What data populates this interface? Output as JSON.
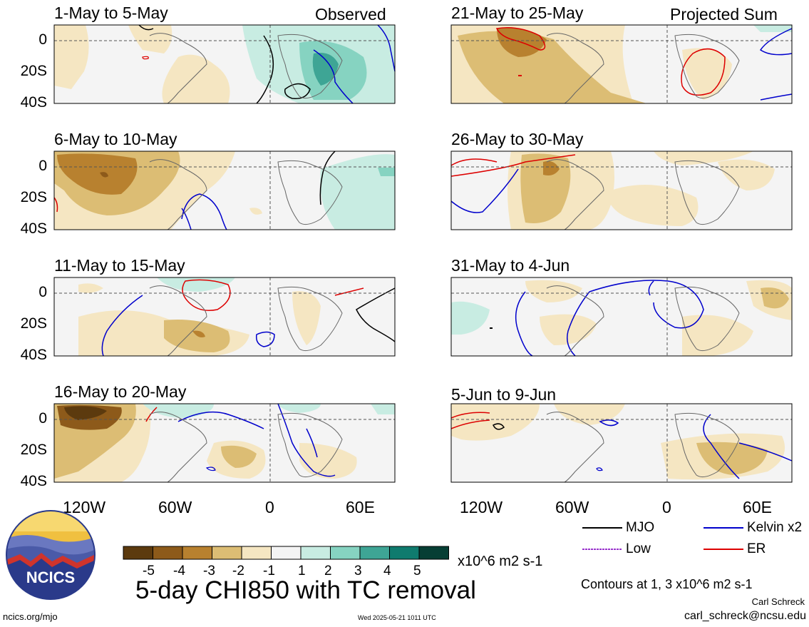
{
  "panels": {
    "left_label": "Observed",
    "right_label": "Projected Sum",
    "left": [
      {
        "title": "1-May to 5-May"
      },
      {
        "title": "6-May to 10-May"
      },
      {
        "title": "11-May to 15-May"
      },
      {
        "title": "16-May to 20-May"
      }
    ],
    "right": [
      {
        "title": "21-May to 25-May"
      },
      {
        "title": "26-May to 30-May"
      },
      {
        "title": "31-May to 4-Jun"
      },
      {
        "title": "5-Jun to 9-Jun"
      }
    ]
  },
  "axes": {
    "lat_labels": [
      "0",
      "20S",
      "40S"
    ],
    "lon_labels": [
      "120W",
      "60W",
      "0",
      "60E"
    ]
  },
  "colorbar": {
    "labels": [
      "-5",
      "-4",
      "-3",
      "-2",
      "-1",
      "1",
      "2",
      "3",
      "4",
      "5"
    ],
    "colors": [
      "#5c3a0e",
      "#8d5a1a",
      "#b8812f",
      "#dcbd74",
      "#f5e6c2",
      "#f4f4f4",
      "#c8ece2",
      "#86d3c1",
      "#3ea595",
      "#0f7b6e",
      "#063e34"
    ],
    "units": "x10^6 m2 s-1"
  },
  "legend": {
    "items": [
      {
        "label": "MJO",
        "color": "#000000"
      },
      {
        "label": "Kelvin x2",
        "color": "#0000cc"
      },
      {
        "label": "Low",
        "color": "#9933cc"
      },
      {
        "label": "ER",
        "color": "#dd0000"
      }
    ],
    "contours_note": "Contours at 1, 3 x10^6 m2 s-1",
    "author": "Carl Schreck",
    "email": "carl_schreck@ncsu.edu"
  },
  "title": "5-day CHI850 with TC removal",
  "logo_text": "NCICS",
  "site": "ncics.org/mjo",
  "timestamp": "Wed 2025-05-21 1011 UTC"
}
